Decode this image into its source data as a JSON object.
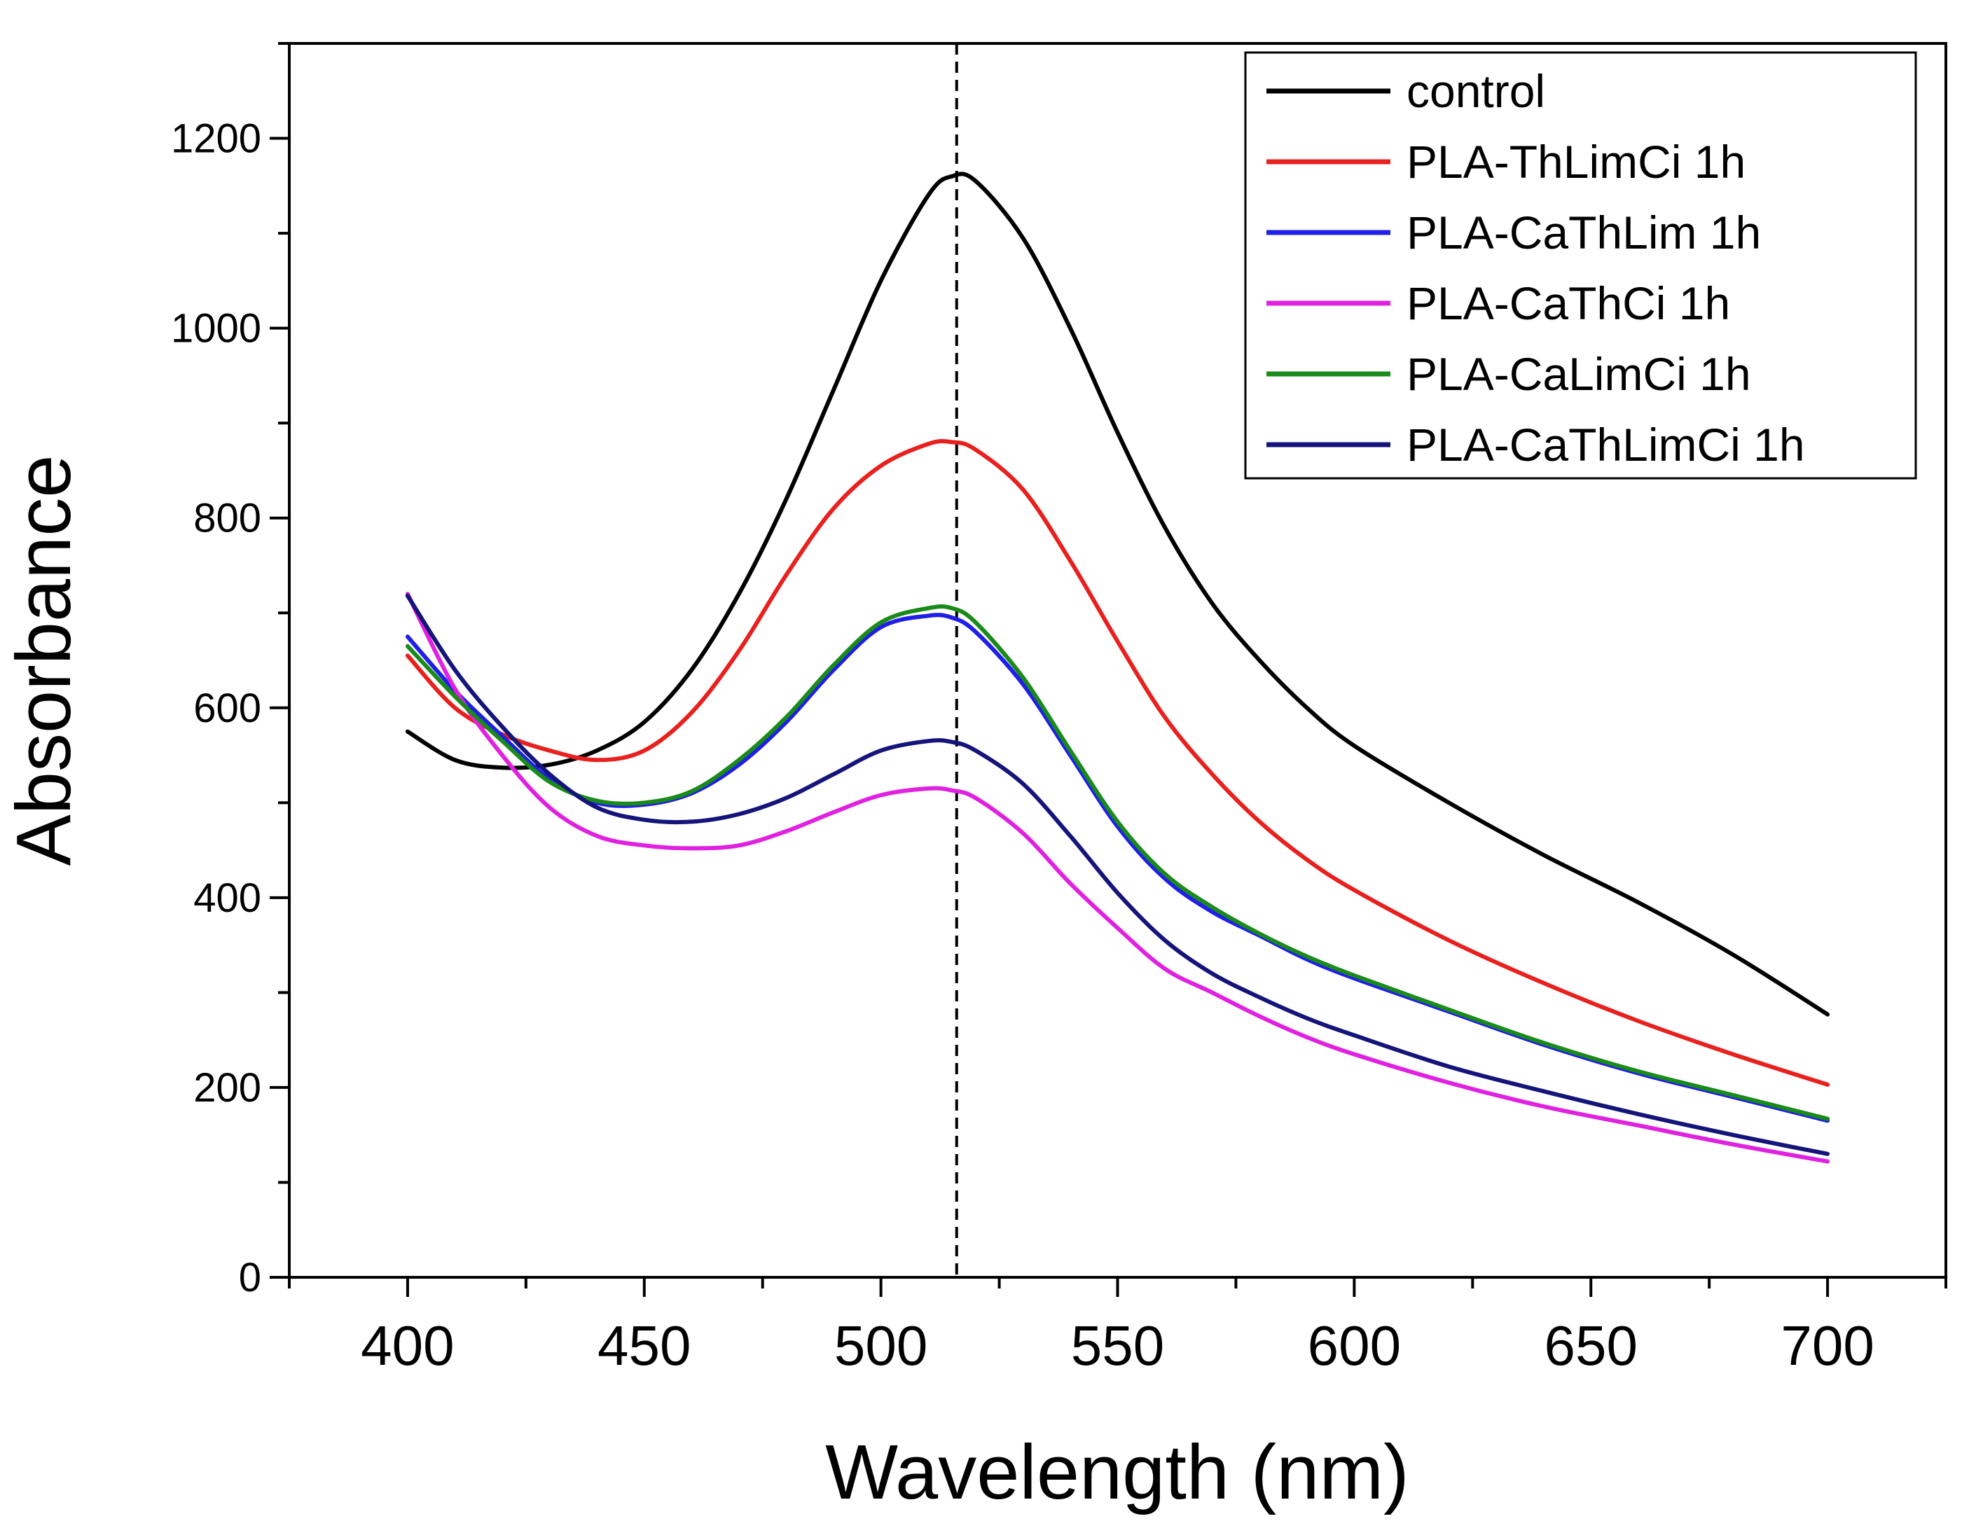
{
  "chart_data": {
    "type": "line",
    "title": "",
    "xlabel": "Wavelength (nm)",
    "ylabel": "Absorbance",
    "xlim": [
      375,
      725
    ],
    "ylim": [
      0,
      1300
    ],
    "x_major_ticks": [
      400,
      450,
      500,
      550,
      600,
      650,
      700
    ],
    "x_minor_ticks": [
      375,
      425,
      475,
      525,
      575,
      625,
      675,
      725
    ],
    "y_major_ticks": [
      0,
      200,
      400,
      600,
      800,
      1000,
      1200
    ],
    "y_minor_ticks": [
      100,
      300,
      500,
      700,
      900,
      1100,
      1300
    ],
    "x_tick_labels": [
      "400",
      "450",
      "500",
      "550",
      "600",
      "650",
      "700"
    ],
    "y_tick_labels": [
      "0",
      "200",
      "400",
      "600",
      "800",
      "1000",
      "1200"
    ],
    "grid": false,
    "legend_position": "top-right",
    "reference_line": {
      "x": 516,
      "style": "dashed"
    },
    "x": [
      400,
      410,
      420,
      430,
      440,
      450,
      460,
      470,
      480,
      490,
      500,
      510,
      515,
      520,
      530,
      540,
      550,
      560,
      570,
      580,
      590,
      600,
      620,
      640,
      660,
      680,
      700
    ],
    "series": [
      {
        "name": "control",
        "color": "#000000",
        "values": [
          575,
          545,
          537,
          540,
          555,
          585,
          640,
          720,
          820,
          935,
          1050,
          1140,
          1160,
          1155,
          1095,
          1000,
          890,
          790,
          710,
          650,
          600,
          560,
          500,
          445,
          395,
          340,
          277
        ]
      },
      {
        "name": "PLA-ThLimCi 1h",
        "color": "#e8211f",
        "values": [
          655,
          600,
          572,
          555,
          545,
          555,
          595,
          660,
          740,
          810,
          855,
          878,
          880,
          872,
          830,
          755,
          670,
          590,
          530,
          480,
          440,
          408,
          355,
          310,
          270,
          235,
          203
        ]
      },
      {
        "name": "PLA-CaThLim 1h",
        "color": "#1f1fe8",
        "values": [
          675,
          618,
          570,
          525,
          500,
          498,
          510,
          540,
          585,
          640,
          685,
          697,
          695,
          680,
          625,
          550,
          475,
          420,
          385,
          360,
          335,
          315,
          280,
          245,
          215,
          190,
          165
        ]
      },
      {
        "name": "PLA-CaThCi 1h",
        "color": "#e021e0",
        "values": [
          720,
          620,
          550,
          495,
          465,
          455,
          452,
          455,
          470,
          490,
          508,
          515,
          513,
          505,
          468,
          415,
          368,
          325,
          300,
          275,
          253,
          235,
          205,
          180,
          160,
          140,
          122
        ]
      },
      {
        "name": "PLA-CaLimCi 1h",
        "color": "#1a8a1a",
        "values": [
          665,
          612,
          565,
          522,
          502,
          500,
          512,
          545,
          590,
          645,
          690,
          705,
          705,
          690,
          632,
          555,
          480,
          425,
          390,
          362,
          338,
          318,
          282,
          247,
          217,
          192,
          167
        ]
      },
      {
        "name": "PLA-CaThLimCi 1h",
        "color": "#14147a",
        "values": [
          718,
          640,
          580,
          530,
          495,
          482,
          480,
          488,
          505,
          530,
          555,
          565,
          564,
          555,
          520,
          465,
          405,
          355,
          320,
          295,
          273,
          255,
          222,
          196,
          172,
          150,
          130
        ]
      }
    ]
  }
}
